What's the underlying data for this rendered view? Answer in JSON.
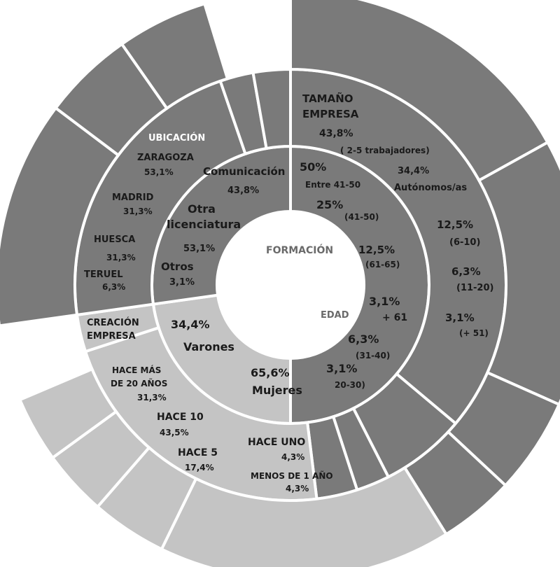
{
  "chart_data": {
    "type": "sunburst",
    "center_label": "FORMACIÓN",
    "colors": {
      "dark": "#7a7a7a",
      "light": "#c4c4c4",
      "stroke": "#ffffff"
    },
    "inner_ring": [
      {
        "name": "Comunicación",
        "value": "43,8%"
      },
      {
        "name": "Otra licenciatura",
        "value": "53,1%"
      },
      {
        "name": "Otros",
        "value": "3,1%"
      }
    ],
    "edad": {
      "title": "EDAD",
      "items": [
        {
          "value": "50%",
          "label": "Entre 41-50"
        },
        {
          "value": "25%",
          "label": "(41-50)"
        },
        {
          "value": "12,5%",
          "label": "(61-65)"
        },
        {
          "value": "3,1%",
          "label": "+ 61"
        },
        {
          "value": "6,3%",
          "label": "(31-40)"
        },
        {
          "value": "3,1%",
          "label": "20-30)"
        }
      ]
    },
    "sexo": [
      {
        "value": "34,4%",
        "label": "Varones"
      },
      {
        "value": "65,6%",
        "label": "Mujeres"
      }
    ],
    "ubicacion": {
      "title": "UBICACIÓN",
      "items": [
        {
          "label": "ZARAGOZA",
          "value": "53,1%"
        },
        {
          "label": "MADRID",
          "value": "31,3%"
        },
        {
          "label": "HUESCA",
          "value": "31,3%"
        },
        {
          "label": "TERUEL",
          "value": "6,3%"
        }
      ]
    },
    "tamano_empresa": {
      "title_line1": "TAMAÑO",
      "title_line2": "EMPRESA",
      "items": [
        {
          "value": "43,8%",
          "label": "( 2-5 trabajadores)"
        },
        {
          "value": "34,4%",
          "label": "Autónomos/as"
        },
        {
          "value": "12,5%",
          "label": "(6-10)"
        },
        {
          "value": "6,3%",
          "label": "(11-20)"
        },
        {
          "value": "3,1%",
          "label": "(+ 51)"
        }
      ]
    },
    "creacion_empresa": {
      "title_line1": "CREACIÓN",
      "title_line2": "EMPRESA",
      "items": [
        {
          "label_line1": "HACE MÁS",
          "label_line2": "DE 20 AÑOS",
          "value": "31,3%"
        },
        {
          "label": "HACE 10",
          "value": "43,5%"
        },
        {
          "label": "HACE 5",
          "value": "17,4%"
        },
        {
          "label": "HACE UNO",
          "value": "4,3%"
        },
        {
          "label": "MENOS DE 1 AÑO",
          "value": "4,3%"
        }
      ]
    }
  }
}
